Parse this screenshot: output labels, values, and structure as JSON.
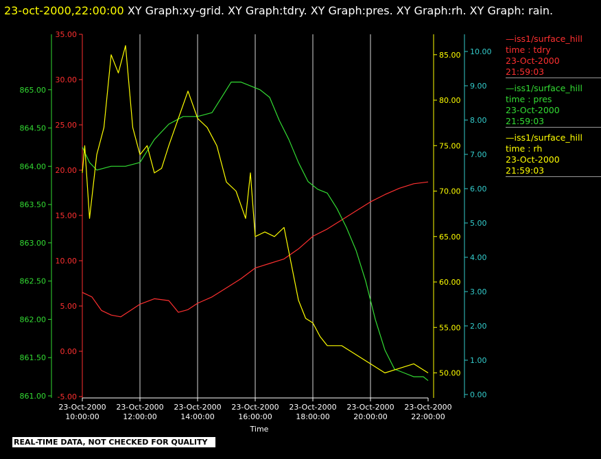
{
  "header": {
    "timestamp": "23-oct-2000,22:00:00",
    "graphs": "XY Graph:xy-grid.  XY Graph:tdry.  XY Graph:pres.  XY Graph:rh.  XY Graph: rain."
  },
  "footer": {
    "quality_note": "REAL-TIME DATA, NOT CHECKED FOR QUALITY"
  },
  "legend": [
    {
      "source": "—iss1/surface_hill",
      "variable": "time : tdry",
      "date": "23-Oct-2000",
      "time": "21:59:03",
      "color": "#ff3030"
    },
    {
      "source": "—iss1/surface_hill",
      "variable": "time : pres",
      "date": "23-Oct-2000",
      "time": "21:59:03",
      "color": "#33dd33"
    },
    {
      "source": "—iss1/surface_hill",
      "variable": "time : rh",
      "date": "23-Oct-2000",
      "time": "21:59:03",
      "color": "#ffff00"
    }
  ],
  "chart_data": {
    "type": "line",
    "xlabel": "Time",
    "x_ticks": [
      {
        "date": "23-Oct-2000",
        "time": "10:00:00"
      },
      {
        "date": "23-Oct-2000",
        "time": "12:00:00"
      },
      {
        "date": "23-Oct-2000",
        "time": "14:00:00"
      },
      {
        "date": "23-Oct-2000",
        "time": "16:00:00"
      },
      {
        "date": "23-Oct-2000",
        "time": "18:00:00"
      },
      {
        "date": "23-Oct-2000",
        "time": "20:00:00"
      },
      {
        "date": "23-Oct-2000",
        "time": "22:00:00"
      }
    ],
    "xlim": [
      "2000-10-23T10:00:00",
      "2000-10-23T22:00:00"
    ],
    "grid": "vertical",
    "axes": [
      {
        "id": "pres",
        "color": "#33dd33",
        "ylim": [
          861.0,
          865.5
        ],
        "ticks": [
          "861.00",
          "861.50",
          "862.00",
          "862.50",
          "863.00",
          "863.50",
          "864.00",
          "864.50",
          "865.00"
        ]
      },
      {
        "id": "tdry",
        "color": "#ff3030",
        "ylim": [
          -5.0,
          35.0
        ],
        "ticks": [
          "-5.00",
          "0.00",
          "5.00",
          "10.00",
          "15.00",
          "20.00",
          "25.00",
          "30.00",
          "35.00"
        ]
      },
      {
        "id": "rh",
        "color": "#ffff00",
        "ylim": [
          48.0,
          88.0
        ],
        "ticks": [
          "50.00",
          "55.00",
          "60.00",
          "65.00",
          "70.00",
          "75.00",
          "80.00",
          "85.00"
        ]
      },
      {
        "id": "rain",
        "color": "#33cccc",
        "ylim": [
          0.0,
          10.0
        ],
        "ticks": [
          "0.00",
          "1.00",
          "2.00",
          "3.00",
          "4.00",
          "5.00",
          "6.00",
          "7.00",
          "8.00",
          "9.00",
          "10.00"
        ]
      }
    ],
    "series": [
      {
        "name": "tdry",
        "axis": "tdry",
        "color": "#ff3030",
        "x": [
          "2000-10-23T10:00",
          "2000-10-23T10:20",
          "2000-10-23T10:40",
          "2000-10-23T11:00",
          "2000-10-23T11:20",
          "2000-10-23T11:40",
          "2000-10-23T12:00",
          "2000-10-23T12:30",
          "2000-10-23T13:00",
          "2000-10-23T13:20",
          "2000-10-23T13:40",
          "2000-10-23T14:00",
          "2000-10-23T14:30",
          "2000-10-23T15:00",
          "2000-10-23T15:30",
          "2000-10-23T16:00",
          "2000-10-23T16:30",
          "2000-10-23T17:00",
          "2000-10-23T17:30",
          "2000-10-23T18:00",
          "2000-10-23T18:30",
          "2000-10-23T19:00",
          "2000-10-23T19:30",
          "2000-10-23T20:00",
          "2000-10-23T20:30",
          "2000-10-23T21:00",
          "2000-10-23T21:30",
          "2000-10-23T22:00"
        ],
        "y": [
          6.5,
          6.0,
          4.5,
          4.0,
          3.8,
          4.5,
          5.2,
          5.8,
          5.6,
          4.3,
          4.6,
          5.3,
          6.0,
          7.0,
          8.0,
          9.2,
          9.7,
          10.2,
          11.3,
          12.7,
          13.5,
          14.5,
          15.5,
          16.5,
          17.3,
          18.0,
          18.5,
          18.7
        ]
      },
      {
        "name": "pres",
        "axis": "pres",
        "color": "#33dd33",
        "x": [
          "2000-10-23T10:00",
          "2000-10-23T10:15",
          "2000-10-23T10:30",
          "2000-10-23T11:00",
          "2000-10-23T11:30",
          "2000-10-23T12:00",
          "2000-10-23T12:30",
          "2000-10-23T13:00",
          "2000-10-23T13:30",
          "2000-10-23T14:00",
          "2000-10-23T14:30",
          "2000-10-23T14:50",
          "2000-10-23T15:10",
          "2000-10-23T15:30",
          "2000-10-23T15:50",
          "2000-10-23T16:10",
          "2000-10-23T16:30",
          "2000-10-23T16:50",
          "2000-10-23T17:10",
          "2000-10-23T17:30",
          "2000-10-23T17:50",
          "2000-10-23T18:10",
          "2000-10-23T18:30",
          "2000-10-23T18:50",
          "2000-10-23T19:10",
          "2000-10-23T19:30",
          "2000-10-23T19:50",
          "2000-10-23T20:10",
          "2000-10-23T20:30",
          "2000-10-23T20:50",
          "2000-10-23T21:10",
          "2000-10-23T21:30",
          "2000-10-23T21:50",
          "2000-10-23T22:00"
        ],
        "y": [
          864.25,
          864.05,
          863.95,
          864.0,
          864.0,
          864.05,
          864.35,
          864.55,
          864.65,
          864.65,
          864.7,
          864.9,
          865.1,
          865.1,
          865.05,
          865.0,
          864.9,
          864.6,
          864.35,
          864.05,
          863.8,
          863.7,
          863.65,
          863.45,
          863.2,
          862.9,
          862.5,
          862.0,
          861.6,
          861.35,
          861.3,
          861.25,
          861.25,
          861.2
        ]
      },
      {
        "name": "rh",
        "axis": "rh",
        "color": "#ffff00",
        "x": [
          "2000-10-23T10:00",
          "2000-10-23T10:05",
          "2000-10-23T10:15",
          "2000-10-23T10:30",
          "2000-10-23T10:45",
          "2000-10-23T11:00",
          "2000-10-23T11:15",
          "2000-10-23T11:30",
          "2000-10-23T11:45",
          "2000-10-23T12:00",
          "2000-10-23T12:15",
          "2000-10-23T12:30",
          "2000-10-23T12:45",
          "2000-10-23T13:00",
          "2000-10-23T13:20",
          "2000-10-23T13:40",
          "2000-10-23T14:00",
          "2000-10-23T14:20",
          "2000-10-23T14:40",
          "2000-10-23T15:00",
          "2000-10-23T15:20",
          "2000-10-23T15:40",
          "2000-10-23T15:50",
          "2000-10-23T16:00",
          "2000-10-23T16:20",
          "2000-10-23T16:40",
          "2000-10-23T17:00",
          "2000-10-23T17:15",
          "2000-10-23T17:30",
          "2000-10-23T17:45",
          "2000-10-23T18:00",
          "2000-10-23T18:15",
          "2000-10-23T18:30",
          "2000-10-23T19:00",
          "2000-10-23T19:30",
          "2000-10-23T20:00",
          "2000-10-23T20:30",
          "2000-10-23T21:00",
          "2000-10-23T21:30",
          "2000-10-23T22:00"
        ],
        "y": [
          72.0,
          75.0,
          67.0,
          74.0,
          77.0,
          85.0,
          83.0,
          86.0,
          77.0,
          74.0,
          75.0,
          72.0,
          72.5,
          75.0,
          78.0,
          81.0,
          78.0,
          77.0,
          75.0,
          71.0,
          70.0,
          67.0,
          72.0,
          65.0,
          65.5,
          65.0,
          66.0,
          62.0,
          58.0,
          56.0,
          55.5,
          54.0,
          53.0,
          53.0,
          52.0,
          51.0,
          50.0,
          50.5,
          51.0,
          50.0
        ]
      }
    ]
  }
}
